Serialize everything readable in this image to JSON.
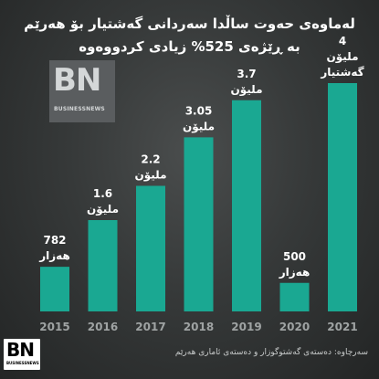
{
  "title_line1": "لەماوەی حەوت ساڵدا سەردانی گەشتیار بۆ هەرێم",
  "title_line2": "بە ڕێژەی 525% زیادی کردووەوە",
  "logo": {
    "text": "BN",
    "subtext": "BUSINESSNEWS"
  },
  "source": "سەرچاوە: دەستەی گەشتوگوزار و دەستەی ئاماری هەرێم",
  "colors": {
    "bar": "#1aa892",
    "background": "#363939",
    "highlight": "#f5c518"
  },
  "chart_data": {
    "type": "bar",
    "categories": [
      "2015",
      "2016",
      "2017",
      "2018",
      "2019",
      "2020",
      "2021"
    ],
    "values": [
      782000,
      1600000,
      2200000,
      3050000,
      3700000,
      500000,
      4000000
    ],
    "labels": [
      {
        "value": "782",
        "unit": "هەزار"
      },
      {
        "value": "1.6",
        "unit": "ملیۆن"
      },
      {
        "value": "2.2",
        "unit": "ملیۆن"
      },
      {
        "value": "3.05",
        "unit": "ملیۆن"
      },
      {
        "value": "3.7",
        "unit": "ملیۆن"
      },
      {
        "value": "500",
        "unit": "هەزار"
      },
      {
        "value": "4",
        "unit": "ملیۆن",
        "extra": "گەشتیار"
      }
    ],
    "ylim": [
      0,
      4000000
    ]
  }
}
